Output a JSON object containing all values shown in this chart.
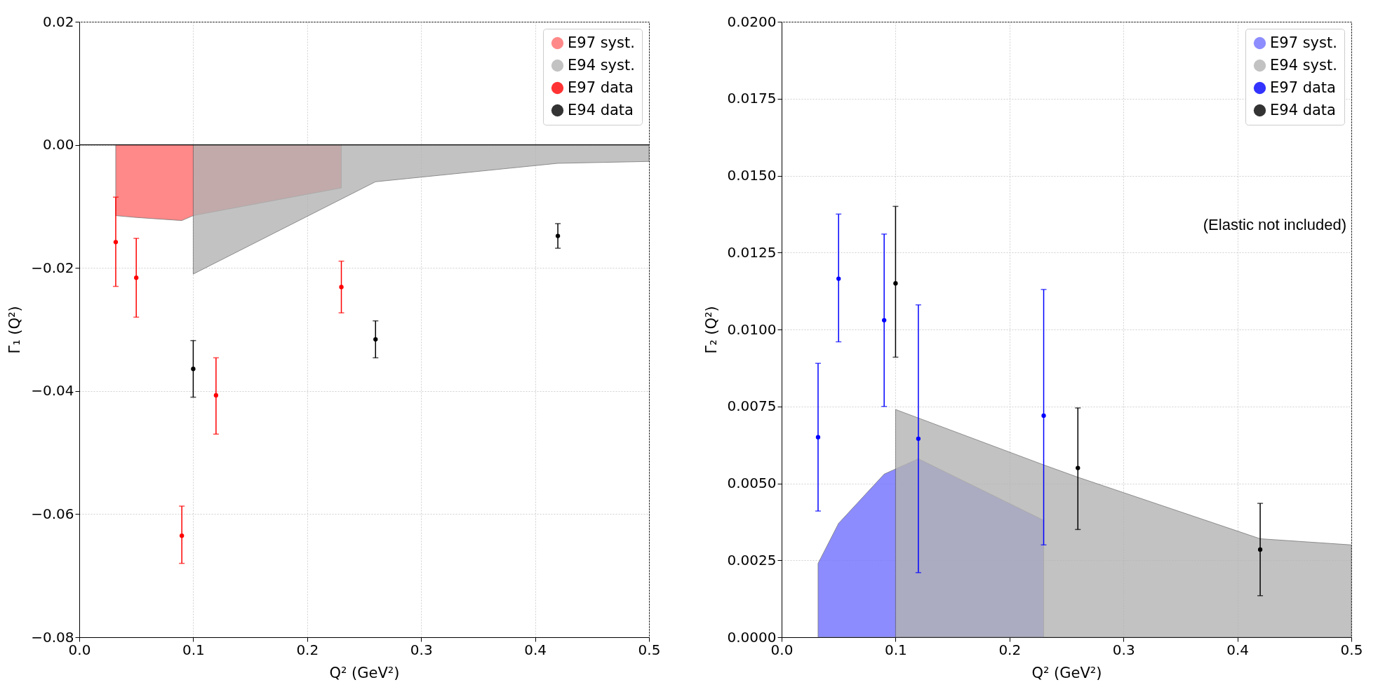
{
  "chart_data": [
    {
      "type": "scatter",
      "xlabel": "Q² (GeV²)",
      "ylabel": "Γ₁ (Q²)",
      "xlim": [
        0,
        0.5
      ],
      "ylim": [
        -0.08,
        0.02
      ],
      "xticks": [
        {
          "value": 0,
          "label": "0.0"
        },
        {
          "value": 0.1,
          "label": "0.1"
        },
        {
          "value": 0.2,
          "label": "0.2"
        },
        {
          "value": 0.3,
          "label": "0.3"
        },
        {
          "value": 0.4,
          "label": "0.4"
        },
        {
          "value": 0.5,
          "label": "0.5"
        }
      ],
      "yticks": [
        {
          "value": -0.08,
          "label": "−0.08"
        },
        {
          "value": -0.06,
          "label": "−0.06"
        },
        {
          "value": -0.04,
          "label": "−0.04"
        },
        {
          "value": -0.02,
          "label": "−0.02"
        },
        {
          "value": 0,
          "label": "0.00"
        },
        {
          "value": 0.02,
          "label": "0.02"
        }
      ],
      "grid": true,
      "legend": "top right",
      "ref_lines": [
        {
          "axis": "y",
          "value": 0,
          "color": "#000000"
        }
      ],
      "series": [
        {
          "name": "E97 syst.",
          "type": "area",
          "color": "#ff6b6b",
          "x": [
            0.032,
            0.05,
            0.09,
            0.1,
            0.12,
            0.23
          ],
          "values": [
            -0.0115,
            -0.0118,
            -0.0123,
            -0.0115,
            -0.0108,
            -0.007
          ]
        },
        {
          "name": "E94 syst.",
          "type": "area",
          "color": "#b3b3b3",
          "x": [
            0.1,
            0.26,
            0.42,
            0.5
          ],
          "values": [
            -0.021,
            -0.006,
            -0.003,
            -0.0027
          ]
        },
        {
          "name": "E97 data",
          "type": "scatter",
          "marker": "circle",
          "color": "#ff0000",
          "x": [
            0.032,
            0.05,
            0.09,
            0.12,
            0.23
          ],
          "values": [
            -0.0158,
            -0.0216,
            -0.0635,
            -0.0407,
            -0.0231
          ],
          "errors": [
            [
              -0.023,
              -0.0085
            ],
            [
              -0.028,
              -0.0152
            ],
            [
              -0.068,
              -0.0587
            ],
            [
              -0.047,
              -0.0346
            ],
            [
              -0.0273,
              -0.0189
            ]
          ]
        },
        {
          "name": "E94 data",
          "type": "scatter",
          "marker": "circle",
          "color": "#000000",
          "x": [
            0.1,
            0.26,
            0.42
          ],
          "values": [
            -0.0364,
            -0.0316,
            -0.0148
          ],
          "errors": [
            [
              -0.041,
              -0.0318
            ],
            [
              -0.0346,
              -0.0286
            ],
            [
              -0.0168,
              -0.0128
            ]
          ]
        }
      ]
    },
    {
      "type": "scatter",
      "xlabel": "Q² (GeV²)",
      "ylabel": "Γ₂ (Q²)",
      "xlim": [
        0,
        0.5
      ],
      "ylim": [
        0,
        0.02
      ],
      "xticks": [
        {
          "value": 0,
          "label": "0.0"
        },
        {
          "value": 0.1,
          "label": "0.1"
        },
        {
          "value": 0.2,
          "label": "0.2"
        },
        {
          "value": 0.3,
          "label": "0.3"
        },
        {
          "value": 0.4,
          "label": "0.4"
        },
        {
          "value": 0.5,
          "label": "0.5"
        }
      ],
      "yticks": [
        {
          "value": 0,
          "label": "0.0000"
        },
        {
          "value": 0.0025,
          "label": "0.0025"
        },
        {
          "value": 0.005,
          "label": "0.0050"
        },
        {
          "value": 0.0075,
          "label": "0.0075"
        },
        {
          "value": 0.01,
          "label": "0.0100"
        },
        {
          "value": 0.0125,
          "label": "0.0125"
        },
        {
          "value": 0.015,
          "label": "0.0150"
        },
        {
          "value": 0.0175,
          "label": "0.0175"
        },
        {
          "value": 0.02,
          "label": "0.0200"
        }
      ],
      "grid": true,
      "legend": "top right",
      "annotations": [
        "(Elastic not included)"
      ],
      "series": [
        {
          "name": "E97 syst.",
          "type": "area",
          "color": "#7070ff",
          "x": [
            0.032,
            0.05,
            0.09,
            0.12,
            0.23
          ],
          "values": [
            0.0024,
            0.0037,
            0.0053,
            0.0058,
            0.0038
          ]
        },
        {
          "name": "E94 syst.",
          "type": "area",
          "color": "#b3b3b3",
          "x": [
            0.1,
            0.23,
            0.26,
            0.42,
            0.5
          ],
          "values": [
            0.0074,
            0.0056,
            0.0052,
            0.0032,
            0.003
          ]
        },
        {
          "name": "E97 data",
          "type": "scatter",
          "marker": "circle",
          "color": "#0000ff",
          "x": [
            0.032,
            0.05,
            0.09,
            0.12,
            0.23
          ],
          "values": [
            0.0065,
            0.01165,
            0.0103,
            0.00645,
            0.0072
          ],
          "errors": [
            [
              0.0041,
              0.0089
            ],
            [
              0.0096,
              0.01375
            ],
            [
              0.0075,
              0.0131
            ],
            [
              0.0021,
              0.0108
            ],
            [
              0.003,
              0.0113
            ]
          ]
        },
        {
          "name": "E94 data",
          "type": "scatter",
          "marker": "circle",
          "color": "#000000",
          "x": [
            0.1,
            0.26,
            0.42
          ],
          "values": [
            0.0115,
            0.0055,
            0.00285
          ],
          "errors": [
            [
              0.0091,
              0.014
            ],
            [
              0.0035,
              0.00745
            ],
            [
              0.00135,
              0.00435
            ]
          ]
        }
      ]
    }
  ]
}
